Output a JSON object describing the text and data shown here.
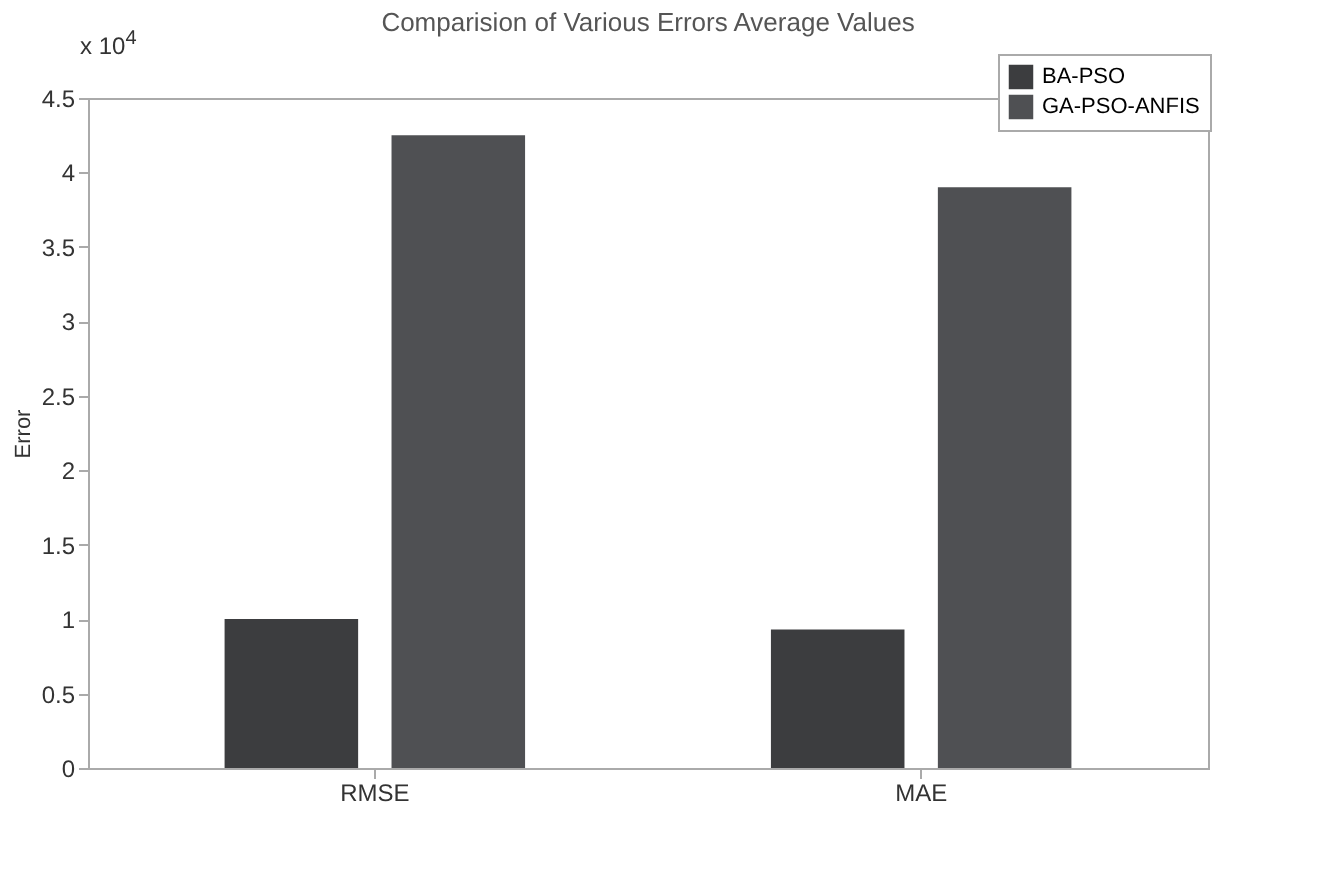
{
  "chart_data": {
    "type": "bar",
    "title": "Comparision of Various Errors Average Values",
    "ylabel": "Error",
    "annotations": [
      "x 10$^{4}$"
    ],
    "categories": [
      "RMSE",
      "MAE"
    ],
    "series": [
      {
        "name": "BA-PSO",
        "color": "#3c3d3f",
        "values": [
          1.0,
          0.93
        ]
      },
      {
        "name": "GA-PSO-ANFIS",
        "color": "#4f5053",
        "values": [
          4.25,
          3.9
        ]
      }
    ],
    "ylim": [
      0,
      4.5
    ],
    "yticks": [
      0,
      0.5,
      1,
      1.5,
      2,
      2.5,
      3,
      3.5,
      4,
      4.5
    ],
    "grid": false,
    "legend": "top right"
  }
}
